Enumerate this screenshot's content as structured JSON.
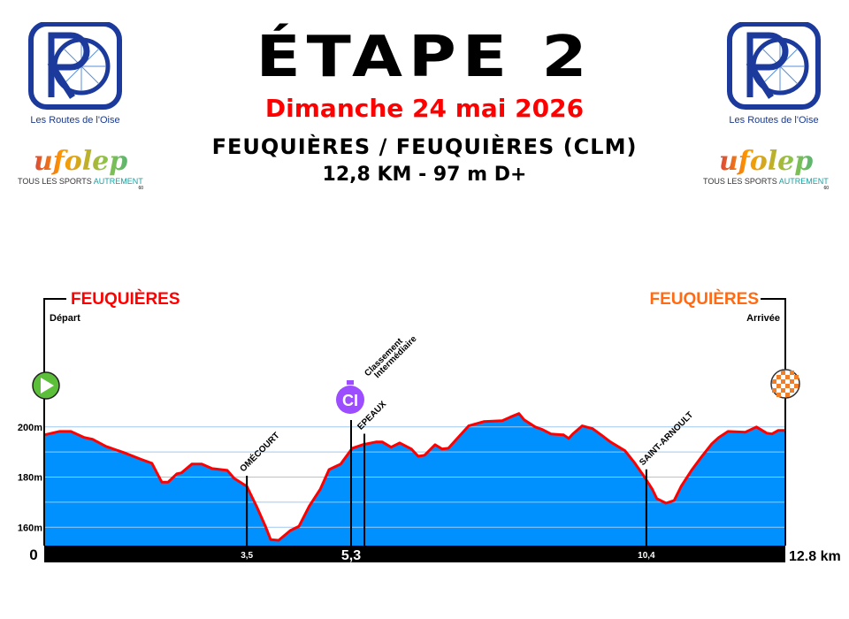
{
  "header": {
    "title": "ÉTAPE 2",
    "date": "Dimanche 24 mai 2026",
    "route": "FEUQUIÈRES / FEUQUIÈRES (CLM)",
    "distance": "12,8 KM - 97 m D+"
  },
  "logos": {
    "club_caption": "Les Routes de l'Oise",
    "ufolep_name": "ufolep",
    "ufolep_tagline_a": "TOUS LES SPORTS",
    "ufolep_tagline_b": "AUTREMENT",
    "ufolep_code": "60"
  },
  "start": {
    "name": "FEUQUIÈRES",
    "label": "Départ",
    "color": "#ff0000",
    "icon": "play-icon"
  },
  "finish": {
    "name": "FEUQUIÈRES",
    "label": "Arrivée",
    "color": "#ff6a13",
    "icon": "checkered-flag-icon"
  },
  "colors": {
    "fill": "#0091ff",
    "line": "#ff0000",
    "ci": "#9b4dff",
    "start_icon": "#5cbf3a",
    "finish_icon": "#f07f2a"
  },
  "chart_data": {
    "type": "area",
    "xlabel": "",
    "ylabel": "",
    "x_start_label": "0",
    "x_end_label": "12.8 km",
    "xlim": [
      0,
      12.8
    ],
    "ylim": [
      152.7,
      251
    ],
    "yticks": [
      {
        "v": 160,
        "label": "160m"
      },
      {
        "v": 180,
        "label": "180m"
      },
      {
        "v": 200,
        "label": "200m"
      }
    ],
    "grid": [
      170,
      190
    ],
    "profile": [
      [
        0,
        196.8
      ],
      [
        0.26,
        198.2
      ],
      [
        0.46,
        198.2
      ],
      [
        0.69,
        195.8
      ],
      [
        0.84,
        195
      ],
      [
        1.07,
        192.2
      ],
      [
        1.37,
        189.8
      ],
      [
        1.68,
        187
      ],
      [
        1.86,
        185.5
      ],
      [
        2.03,
        178
      ],
      [
        2.14,
        178
      ],
      [
        2.29,
        181.3
      ],
      [
        2.37,
        181.7
      ],
      [
        2.55,
        185.2
      ],
      [
        2.72,
        185.2
      ],
      [
        2.9,
        183.4
      ],
      [
        3.16,
        182.7
      ],
      [
        3.28,
        179.5
      ],
      [
        3.5,
        176.3
      ],
      [
        3.67,
        168.2
      ],
      [
        3.82,
        160.4
      ],
      [
        3.91,
        155.1
      ],
      [
        4.05,
        154.8
      ],
      [
        4.25,
        158.7
      ],
      [
        4.4,
        160.4
      ],
      [
        4.58,
        168.5
      ],
      [
        4.77,
        175.3
      ],
      [
        4.92,
        183
      ],
      [
        5.12,
        185.2
      ],
      [
        5.32,
        191.5
      ],
      [
        5.5,
        192.9
      ],
      [
        5.73,
        194
      ],
      [
        5.84,
        194
      ],
      [
        5.99,
        191.9
      ],
      [
        6.14,
        193.6
      ],
      [
        6.34,
        191.2
      ],
      [
        6.46,
        188.3
      ],
      [
        6.57,
        188.7
      ],
      [
        6.75,
        192.9
      ],
      [
        6.87,
        191.2
      ],
      [
        6.98,
        191.5
      ],
      [
        7.33,
        200.4
      ],
      [
        7.59,
        202.1
      ],
      [
        7.91,
        202.5
      ],
      [
        8.05,
        203.9
      ],
      [
        8.2,
        205.3
      ],
      [
        8.29,
        202.8
      ],
      [
        8.48,
        200
      ],
      [
        8.6,
        199
      ],
      [
        8.75,
        197.2
      ],
      [
        8.97,
        196.8
      ],
      [
        9.06,
        195.4
      ],
      [
        9.13,
        197.2
      ],
      [
        9.29,
        200.4
      ],
      [
        9.47,
        199.3
      ],
      [
        9.62,
        196.8
      ],
      [
        9.78,
        194
      ],
      [
        10.03,
        190.5
      ],
      [
        10.19,
        185.9
      ],
      [
        10.34,
        181
      ],
      [
        10.5,
        175.3
      ],
      [
        10.58,
        171.4
      ],
      [
        10.74,
        169.6
      ],
      [
        10.88,
        170.7
      ],
      [
        11,
        176.3
      ],
      [
        11.18,
        182.7
      ],
      [
        11.35,
        188
      ],
      [
        11.53,
        193.3
      ],
      [
        11.65,
        195.8
      ],
      [
        11.81,
        198.2
      ],
      [
        12.11,
        197.9
      ],
      [
        12.3,
        200
      ],
      [
        12.48,
        197.5
      ],
      [
        12.57,
        197.2
      ],
      [
        12.68,
        198.6
      ],
      [
        12.8,
        198.6
      ]
    ],
    "markers": [
      {
        "km": 3.5,
        "km_label": "3,5",
        "name": "OMÉCOURT"
      },
      {
        "km": 5.3,
        "km_label": "5,3",
        "name": "",
        "type": "ci",
        "badge": "CI",
        "lines": [
          "Classement",
          "Intermédiaire"
        ]
      },
      {
        "km": 5.53,
        "km_label": "",
        "name": "EPEAUX"
      },
      {
        "km": 10.4,
        "km_label": "10,4",
        "name": "SAINT-ARNOULT"
      }
    ]
  }
}
